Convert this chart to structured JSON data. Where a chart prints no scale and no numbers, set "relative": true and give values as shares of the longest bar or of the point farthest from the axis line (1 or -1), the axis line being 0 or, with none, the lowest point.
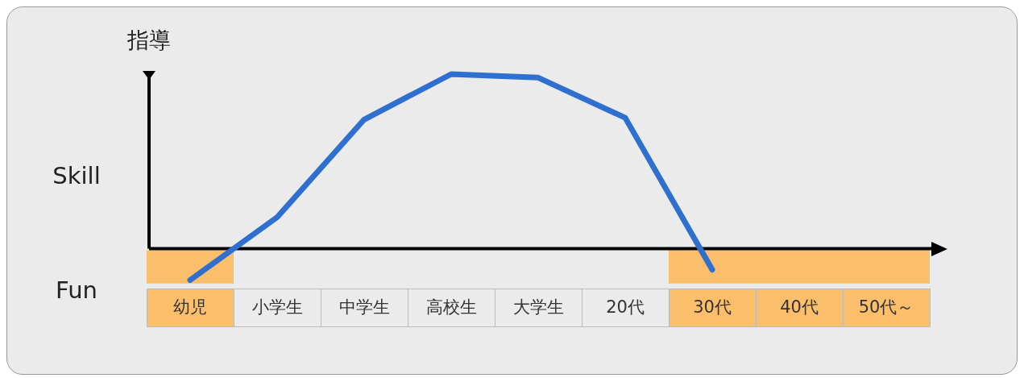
{
  "chart_data": {
    "type": "line",
    "relative": true,
    "ylabel": "指導",
    "categories": [
      "幼児",
      "小学生",
      "中学生",
      "高校生",
      "大学生",
      "20代",
      "30代",
      "40代",
      "50代～"
    ],
    "series": [
      {
        "color": "#2f6fd0",
        "values": [
          -0.18,
          0.18,
          0.74,
          1.0,
          0.98,
          0.75,
          -0.12,
          null,
          null
        ]
      }
    ],
    "bands": [
      {
        "axis": "x",
        "from": "幼児",
        "to": "幼児",
        "color": "#fbbf6c"
      },
      {
        "axis": "x",
        "from": "30代",
        "to": "50代～",
        "color": "#fbbf6c"
      }
    ],
    "annotations": [
      "Skill",
      "Fun"
    ],
    "grid": false,
    "legend": false,
    "marker": "none",
    "line_style": "solid"
  }
}
